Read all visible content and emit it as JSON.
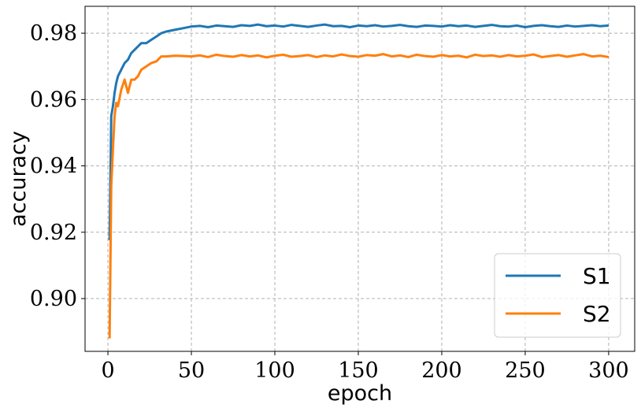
{
  "chart_data": {
    "type": "line",
    "xlabel": "epoch",
    "ylabel": "accuracy",
    "x": [
      1,
      2,
      3,
      4,
      5,
      6,
      8,
      10,
      12,
      14,
      16,
      18,
      20,
      23,
      26,
      29,
      32,
      35,
      40,
      45,
      50,
      55,
      60,
      65,
      70,
      75,
      80,
      85,
      90,
      95,
      100,
      105,
      110,
      115,
      120,
      125,
      130,
      135,
      140,
      145,
      150,
      155,
      160,
      165,
      170,
      175,
      180,
      185,
      190,
      195,
      200,
      205,
      210,
      215,
      220,
      225,
      230,
      235,
      240,
      245,
      250,
      255,
      260,
      265,
      270,
      275,
      280,
      285,
      290,
      295,
      300
    ],
    "series": [
      {
        "name": "S1",
        "color": "#1f77b4",
        "values": [
          0.9176,
          0.955,
          0.958,
          0.962,
          0.965,
          0.967,
          0.969,
          0.971,
          0.972,
          0.974,
          0.975,
          0.976,
          0.977,
          0.977,
          0.978,
          0.979,
          0.98,
          0.9805,
          0.981,
          0.9815,
          0.982,
          0.9822,
          0.9818,
          0.9823,
          0.9821,
          0.9819,
          0.9824,
          0.9822,
          0.9826,
          0.9821,
          0.9823,
          0.982,
          0.9825,
          0.9822,
          0.9819,
          0.9823,
          0.9826,
          0.9821,
          0.9822,
          0.9818,
          0.9823,
          0.9821,
          0.9824,
          0.982,
          0.9822,
          0.9825,
          0.9821,
          0.9819,
          0.9823,
          0.9822,
          0.982,
          0.9824,
          0.9821,
          0.9823,
          0.9819,
          0.9822,
          0.9825,
          0.9821,
          0.982,
          0.9823,
          0.9818,
          0.9822,
          0.9824,
          0.9821,
          0.9819,
          0.9823,
          0.982,
          0.9822,
          0.9824,
          0.9821,
          0.9823
        ]
      },
      {
        "name": "S2",
        "color": "#ff7f0e",
        "values": [
          0.888,
          0.934,
          0.945,
          0.955,
          0.959,
          0.958,
          0.963,
          0.966,
          0.962,
          0.966,
          0.966,
          0.967,
          0.969,
          0.97,
          0.971,
          0.9715,
          0.973,
          0.973,
          0.9732,
          0.9731,
          0.973,
          0.9733,
          0.9728,
          0.9735,
          0.9731,
          0.9729,
          0.9734,
          0.973,
          0.9733,
          0.9727,
          0.9732,
          0.9735,
          0.9729,
          0.9731,
          0.9734,
          0.9728,
          0.9733,
          0.973,
          0.9736,
          0.9731,
          0.9729,
          0.9734,
          0.9732,
          0.9737,
          0.973,
          0.9733,
          0.9728,
          0.9735,
          0.9731,
          0.9729,
          0.9734,
          0.973,
          0.9732,
          0.9727,
          0.9735,
          0.9731,
          0.9733,
          0.9729,
          0.9734,
          0.973,
          0.9732,
          0.9736,
          0.9728,
          0.9731,
          0.9734,
          0.9729,
          0.9733,
          0.9737,
          0.973,
          0.9732,
          0.9728
        ]
      }
    ],
    "xlim": [
      -13.7,
      315.6
    ],
    "xticks": [
      0,
      50,
      100,
      150,
      200,
      250,
      300
    ],
    "ylim": [
      0.8841,
      0.9881
    ],
    "yticks": [
      {
        "value": 0.9,
        "label": "0.90"
      },
      0.92,
      0.94,
      0.96,
      0.98
    ],
    "grid": true,
    "legend": "lower right"
  }
}
